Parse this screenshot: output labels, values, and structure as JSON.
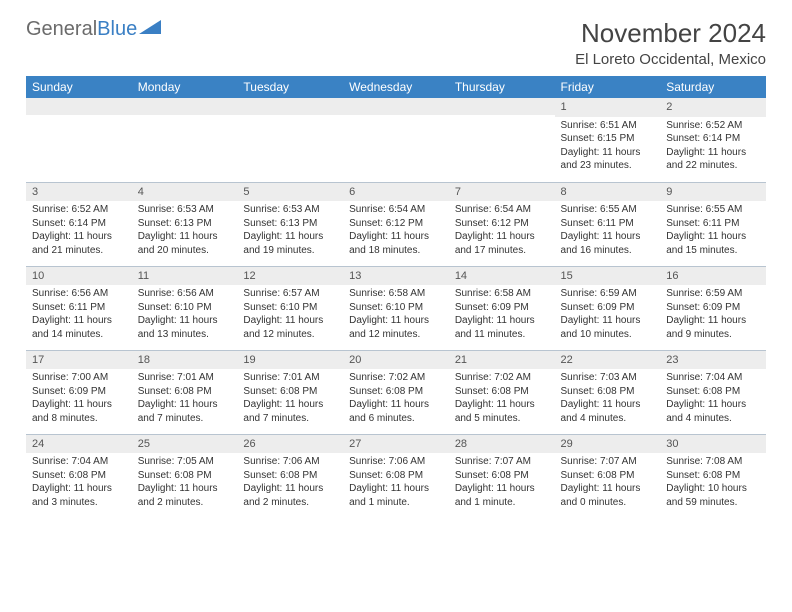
{
  "logo": {
    "text1": "General",
    "text2": "Blue"
  },
  "title": "November 2024",
  "location": "El Loreto Occidental, Mexico",
  "colors": {
    "header_bg": "#3a82c4",
    "header_fg": "#ffffff",
    "daynum_bg": "#ededed",
    "rule": "#b8c4d0",
    "logo_gray": "#6b6b6b",
    "logo_blue": "#3a7fc4"
  },
  "day_headers": [
    "Sunday",
    "Monday",
    "Tuesday",
    "Wednesday",
    "Thursday",
    "Friday",
    "Saturday"
  ],
  "weeks": [
    [
      {
        "n": "",
        "lines": []
      },
      {
        "n": "",
        "lines": []
      },
      {
        "n": "",
        "lines": []
      },
      {
        "n": "",
        "lines": []
      },
      {
        "n": "",
        "lines": []
      },
      {
        "n": "1",
        "lines": [
          "Sunrise: 6:51 AM",
          "Sunset: 6:15 PM",
          "Daylight: 11 hours and 23 minutes."
        ]
      },
      {
        "n": "2",
        "lines": [
          "Sunrise: 6:52 AM",
          "Sunset: 6:14 PM",
          "Daylight: 11 hours and 22 minutes."
        ]
      }
    ],
    [
      {
        "n": "3",
        "lines": [
          "Sunrise: 6:52 AM",
          "Sunset: 6:14 PM",
          "Daylight: 11 hours and 21 minutes."
        ]
      },
      {
        "n": "4",
        "lines": [
          "Sunrise: 6:53 AM",
          "Sunset: 6:13 PM",
          "Daylight: 11 hours and 20 minutes."
        ]
      },
      {
        "n": "5",
        "lines": [
          "Sunrise: 6:53 AM",
          "Sunset: 6:13 PM",
          "Daylight: 11 hours and 19 minutes."
        ]
      },
      {
        "n": "6",
        "lines": [
          "Sunrise: 6:54 AM",
          "Sunset: 6:12 PM",
          "Daylight: 11 hours and 18 minutes."
        ]
      },
      {
        "n": "7",
        "lines": [
          "Sunrise: 6:54 AM",
          "Sunset: 6:12 PM",
          "Daylight: 11 hours and 17 minutes."
        ]
      },
      {
        "n": "8",
        "lines": [
          "Sunrise: 6:55 AM",
          "Sunset: 6:11 PM",
          "Daylight: 11 hours and 16 minutes."
        ]
      },
      {
        "n": "9",
        "lines": [
          "Sunrise: 6:55 AM",
          "Sunset: 6:11 PM",
          "Daylight: 11 hours and 15 minutes."
        ]
      }
    ],
    [
      {
        "n": "10",
        "lines": [
          "Sunrise: 6:56 AM",
          "Sunset: 6:11 PM",
          "Daylight: 11 hours and 14 minutes."
        ]
      },
      {
        "n": "11",
        "lines": [
          "Sunrise: 6:56 AM",
          "Sunset: 6:10 PM",
          "Daylight: 11 hours and 13 minutes."
        ]
      },
      {
        "n": "12",
        "lines": [
          "Sunrise: 6:57 AM",
          "Sunset: 6:10 PM",
          "Daylight: 11 hours and 12 minutes."
        ]
      },
      {
        "n": "13",
        "lines": [
          "Sunrise: 6:58 AM",
          "Sunset: 6:10 PM",
          "Daylight: 11 hours and 12 minutes."
        ]
      },
      {
        "n": "14",
        "lines": [
          "Sunrise: 6:58 AM",
          "Sunset: 6:09 PM",
          "Daylight: 11 hours and 11 minutes."
        ]
      },
      {
        "n": "15",
        "lines": [
          "Sunrise: 6:59 AM",
          "Sunset: 6:09 PM",
          "Daylight: 11 hours and 10 minutes."
        ]
      },
      {
        "n": "16",
        "lines": [
          "Sunrise: 6:59 AM",
          "Sunset: 6:09 PM",
          "Daylight: 11 hours and 9 minutes."
        ]
      }
    ],
    [
      {
        "n": "17",
        "lines": [
          "Sunrise: 7:00 AM",
          "Sunset: 6:09 PM",
          "Daylight: 11 hours and 8 minutes."
        ]
      },
      {
        "n": "18",
        "lines": [
          "Sunrise: 7:01 AM",
          "Sunset: 6:08 PM",
          "Daylight: 11 hours and 7 minutes."
        ]
      },
      {
        "n": "19",
        "lines": [
          "Sunrise: 7:01 AM",
          "Sunset: 6:08 PM",
          "Daylight: 11 hours and 7 minutes."
        ]
      },
      {
        "n": "20",
        "lines": [
          "Sunrise: 7:02 AM",
          "Sunset: 6:08 PM",
          "Daylight: 11 hours and 6 minutes."
        ]
      },
      {
        "n": "21",
        "lines": [
          "Sunrise: 7:02 AM",
          "Sunset: 6:08 PM",
          "Daylight: 11 hours and 5 minutes."
        ]
      },
      {
        "n": "22",
        "lines": [
          "Sunrise: 7:03 AM",
          "Sunset: 6:08 PM",
          "Daylight: 11 hours and 4 minutes."
        ]
      },
      {
        "n": "23",
        "lines": [
          "Sunrise: 7:04 AM",
          "Sunset: 6:08 PM",
          "Daylight: 11 hours and 4 minutes."
        ]
      }
    ],
    [
      {
        "n": "24",
        "lines": [
          "Sunrise: 7:04 AM",
          "Sunset: 6:08 PM",
          "Daylight: 11 hours and 3 minutes."
        ]
      },
      {
        "n": "25",
        "lines": [
          "Sunrise: 7:05 AM",
          "Sunset: 6:08 PM",
          "Daylight: 11 hours and 2 minutes."
        ]
      },
      {
        "n": "26",
        "lines": [
          "Sunrise: 7:06 AM",
          "Sunset: 6:08 PM",
          "Daylight: 11 hours and 2 minutes."
        ]
      },
      {
        "n": "27",
        "lines": [
          "Sunrise: 7:06 AM",
          "Sunset: 6:08 PM",
          "Daylight: 11 hours and 1 minute."
        ]
      },
      {
        "n": "28",
        "lines": [
          "Sunrise: 7:07 AM",
          "Sunset: 6:08 PM",
          "Daylight: 11 hours and 1 minute."
        ]
      },
      {
        "n": "29",
        "lines": [
          "Sunrise: 7:07 AM",
          "Sunset: 6:08 PM",
          "Daylight: 11 hours and 0 minutes."
        ]
      },
      {
        "n": "30",
        "lines": [
          "Sunrise: 7:08 AM",
          "Sunset: 6:08 PM",
          "Daylight: 10 hours and 59 minutes."
        ]
      }
    ]
  ]
}
